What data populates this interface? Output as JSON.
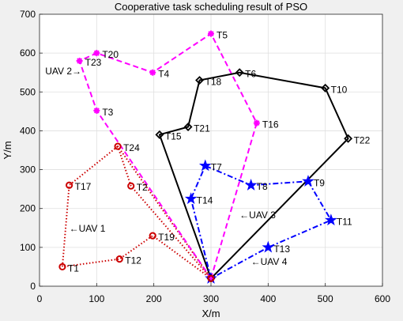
{
  "chart_data": {
    "type": "line",
    "title": "Cooperative task scheduling result of PSO",
    "xlabel": "X/m",
    "ylabel": "Y/m",
    "xlim": [
      0,
      600
    ],
    "ylim": [
      0,
      700
    ],
    "xticks": [
      0,
      100,
      200,
      300,
      400,
      500,
      600
    ],
    "yticks": [
      0,
      100,
      200,
      300,
      400,
      500,
      600,
      700
    ],
    "grid": true,
    "base": {
      "x": 300,
      "y": 20
    },
    "series": [
      {
        "name": "UAV 1",
        "color": "#cc0000",
        "dash": "dotted",
        "marker": "circle",
        "points": [
          {
            "x": 300,
            "y": 20
          },
          {
            "x": 137,
            "y": 360,
            "label": "T24"
          },
          {
            "x": 160,
            "y": 258,
            "label": "T2"
          },
          {
            "x": 300,
            "y": 20
          },
          {
            "x": 198,
            "y": 130,
            "label": "T19"
          },
          {
            "x": 140,
            "y": 70,
            "label": "T12"
          },
          {
            "x": 40,
            "y": 50,
            "label": "T1"
          },
          {
            "x": 52,
            "y": 260,
            "label": "T17"
          }
        ],
        "tail_to": {
          "x": 137,
          "y": 360
        }
      },
      {
        "name": "UAV 2",
        "color": "#ff00ff",
        "dash": "dashed",
        "marker": "asterisk",
        "points": [
          {
            "x": 300,
            "y": 20
          },
          {
            "x": 100,
            "y": 452,
            "label": "T3"
          },
          {
            "x": 70,
            "y": 580,
            "label": "T23"
          },
          {
            "x": 100,
            "y": 600,
            "label": "T20"
          },
          {
            "x": 198,
            "y": 550,
            "label": "T4"
          },
          {
            "x": 300,
            "y": 650,
            "label": "T5"
          },
          {
            "x": 380,
            "y": 420,
            "label": "T16"
          },
          {
            "x": 300,
            "y": 20
          }
        ]
      },
      {
        "name": "UAV 3",
        "color": "#000000",
        "dash": "solid",
        "marker": "diamond",
        "points": [
          {
            "x": 300,
            "y": 20
          },
          {
            "x": 210,
            "y": 390,
            "label": "T15"
          },
          {
            "x": 260,
            "y": 410,
            "label": "T21"
          },
          {
            "x": 280,
            "y": 530,
            "label": "T18"
          },
          {
            "x": 350,
            "y": 550,
            "label": "T6"
          },
          {
            "x": 500,
            "y": 510,
            "label": "T10"
          },
          {
            "x": 540,
            "y": 380,
            "label": "T22"
          },
          {
            "x": 300,
            "y": 20
          }
        ]
      },
      {
        "name": "UAV 4",
        "color": "#0000ff",
        "dash": "dashdot",
        "marker": "star",
        "points": [
          {
            "x": 300,
            "y": 20
          },
          {
            "x": 265,
            "y": 225,
            "label": "T14"
          },
          {
            "x": 290,
            "y": 310,
            "label": "T7"
          },
          {
            "x": 370,
            "y": 260,
            "label": "T8"
          },
          {
            "x": 470,
            "y": 270,
            "label": "T9"
          },
          {
            "x": 510,
            "y": 170,
            "label": "T11"
          },
          {
            "x": 400,
            "y": 100,
            "label": "T13"
          },
          {
            "x": 300,
            "y": 20
          }
        ]
      }
    ],
    "annotations": [
      {
        "text": "UAV 2→",
        "x": 10,
        "y": 545
      },
      {
        "text": "←UAV 1",
        "x": 52,
        "y": 140
      },
      {
        "text": "←UAV 3",
        "x": 350,
        "y": 175
      },
      {
        "text": "←UAV 4",
        "x": 370,
        "y": 55
      }
    ]
  }
}
